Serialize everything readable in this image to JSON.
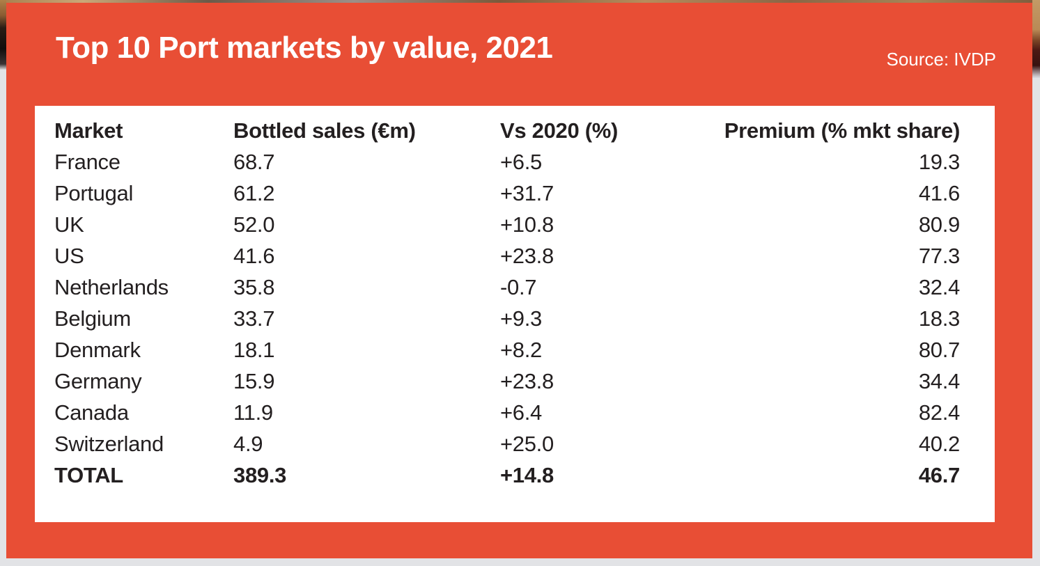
{
  "header": {
    "title": "Top 10 Port markets by value, 2021",
    "source": "Source: IVDP"
  },
  "chart_data": {
    "type": "table",
    "title": "Top 10 Port markets by value, 2021",
    "source": "Source: IVDP",
    "columns": [
      "Market",
      "Bottled sales (€m)",
      "Vs 2020 (%)",
      "Premium (% mkt share)"
    ],
    "rows": [
      {
        "market": "France",
        "bottled_sales": "68.7",
        "vs_2020": "+6.5",
        "premium": "19.3",
        "bold": false
      },
      {
        "market": "Portugal",
        "bottled_sales": "61.2",
        "vs_2020": "+31.7",
        "premium": "41.6",
        "bold": false
      },
      {
        "market": "UK",
        "bottled_sales": "52.0",
        "vs_2020": "+10.8",
        "premium": "80.9",
        "bold": false
      },
      {
        "market": "US",
        "bottled_sales": "41.6",
        "vs_2020": "+23.8",
        "premium": "77.3",
        "bold": false
      },
      {
        "market": "Netherlands",
        "bottled_sales": "35.8",
        "vs_2020": "-0.7",
        "premium": "32.4",
        "bold": false
      },
      {
        "market": "Belgium",
        "bottled_sales": "33.7",
        "vs_2020": "+9.3",
        "premium": "18.3",
        "bold": false
      },
      {
        "market": "Denmark",
        "bottled_sales": "18.1",
        "vs_2020": "+8.2",
        "premium": "80.7",
        "bold": false
      },
      {
        "market": "Germany",
        "bottled_sales": "15.9",
        "vs_2020": "+23.8",
        "premium": "34.4",
        "bold": false
      },
      {
        "market": "Canada",
        "bottled_sales": "11.9",
        "vs_2020": "+6.4",
        "premium": "82.4",
        "bold": false
      },
      {
        "market": "Switzerland",
        "bottled_sales": "4.9",
        "vs_2020": "+25.0",
        "premium": "40.2",
        "bold": false
      },
      {
        "market": "TOTAL",
        "bottled_sales": "389.3",
        "vs_2020": "+14.8",
        "premium": "46.7",
        "bold": true
      }
    ],
    "layout": {
      "header_bold": true,
      "total_row_bold": true,
      "premium_column_alignment": "right",
      "grid": "off"
    }
  },
  "colors": {
    "card_background": "#E84E35",
    "panel_background": "#FFFFFF",
    "title_text": "#FFFFFF",
    "table_text": "#231F20"
  }
}
